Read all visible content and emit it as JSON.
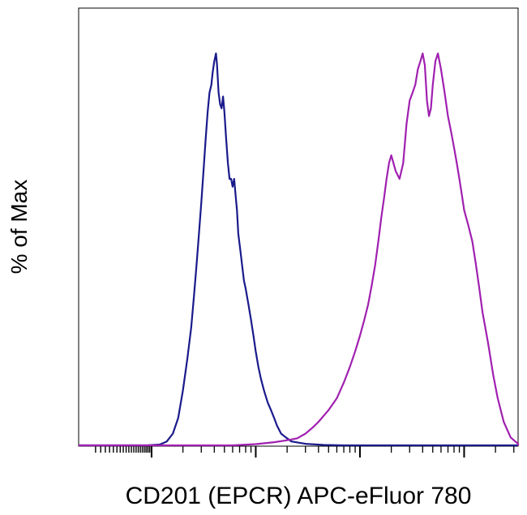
{
  "chart_data": {
    "type": "line",
    "title": "",
    "xlabel": "CD201 (EPCR) APC-eFluor 780",
    "ylabel": "% of Max",
    "x_scale": "log",
    "xlim": [
      1,
      100000
    ],
    "ylim": [
      0,
      100
    ],
    "x_major_ticks": [
      10,
      100,
      1000,
      10000
    ],
    "x_tick_labels_shown": false,
    "grid": false,
    "legend": "none",
    "series": [
      {
        "color": "#1a1a8c",
        "points": [
          [
            1,
            0
          ],
          [
            9,
            0
          ],
          [
            12,
            0.2
          ],
          [
            14,
            1
          ],
          [
            16,
            3
          ],
          [
            18,
            7
          ],
          [
            20,
            14
          ],
          [
            22,
            22
          ],
          [
            24,
            30
          ],
          [
            25.5,
            38
          ],
          [
            27,
            46
          ],
          [
            28.5,
            54
          ],
          [
            30,
            62
          ],
          [
            31.5,
            70
          ],
          [
            33,
            78
          ],
          [
            34.5,
            85
          ],
          [
            36,
            90
          ],
          [
            37.5,
            92
          ],
          [
            38.5,
            95
          ],
          [
            40,
            98
          ],
          [
            41.5,
            100
          ],
          [
            42.5,
            97
          ],
          [
            44,
            90
          ],
          [
            45.5,
            87
          ],
          [
            47,
            86
          ],
          [
            48.5,
            89
          ],
          [
            50,
            85
          ],
          [
            52,
            78
          ],
          [
            54,
            72
          ],
          [
            56,
            68
          ],
          [
            58,
            68
          ],
          [
            60,
            66
          ],
          [
            62,
            68
          ],
          [
            64,
            64
          ],
          [
            66,
            60
          ],
          [
            68,
            54
          ],
          [
            71,
            50
          ],
          [
            74,
            46
          ],
          [
            77,
            42
          ],
          [
            80,
            40
          ],
          [
            85,
            36
          ],
          [
            90,
            32
          ],
          [
            95,
            28
          ],
          [
            100,
            24
          ],
          [
            106,
            20
          ],
          [
            112,
            17
          ],
          [
            120,
            14
          ],
          [
            130,
            11
          ],
          [
            140,
            9
          ],
          [
            150,
            7
          ],
          [
            160,
            5
          ],
          [
            175,
            3
          ],
          [
            195,
            2
          ],
          [
            220,
            1
          ],
          [
            300,
            0.4
          ],
          [
            450,
            0.1
          ],
          [
            700,
            0
          ],
          [
            100000,
            0
          ]
        ]
      },
      {
        "color": "#a020b0",
        "points": [
          [
            1,
            0
          ],
          [
            60,
            0
          ],
          [
            100,
            0.3
          ],
          [
            150,
            0.8
          ],
          [
            200,
            1.3
          ],
          [
            250,
            1.8
          ],
          [
            300,
            3
          ],
          [
            350,
            4.5
          ],
          [
            400,
            6
          ],
          [
            500,
            9
          ],
          [
            600,
            12
          ],
          [
            700,
            16
          ],
          [
            800,
            20
          ],
          [
            900,
            24
          ],
          [
            1000,
            28
          ],
          [
            1100,
            32
          ],
          [
            1200,
            36
          ],
          [
            1300,
            41
          ],
          [
            1400,
            46
          ],
          [
            1500,
            52
          ],
          [
            1600,
            58
          ],
          [
            1700,
            63
          ],
          [
            1800,
            68
          ],
          [
            1900,
            72
          ],
          [
            2000,
            74
          ],
          [
            2200,
            70
          ],
          [
            2400,
            68
          ],
          [
            2600,
            72
          ],
          [
            2800,
            82
          ],
          [
            3000,
            88
          ],
          [
            3200,
            90
          ],
          [
            3400,
            92
          ],
          [
            3600,
            96
          ],
          [
            3800,
            98
          ],
          [
            4000,
            100
          ],
          [
            4200,
            97
          ],
          [
            4400,
            88
          ],
          [
            4600,
            84
          ],
          [
            4800,
            86
          ],
          [
            5000,
            92
          ],
          [
            5300,
            98
          ],
          [
            5600,
            100
          ],
          [
            6000,
            96
          ],
          [
            6500,
            90
          ],
          [
            7000,
            84
          ],
          [
            7500,
            80
          ],
          [
            8000,
            76
          ],
          [
            8500,
            72
          ],
          [
            9000,
            68
          ],
          [
            9500,
            64
          ],
          [
            10000,
            60
          ],
          [
            11000,
            56
          ],
          [
            12000,
            52
          ],
          [
            13000,
            46
          ],
          [
            14000,
            40
          ],
          [
            15000,
            34
          ],
          [
            17000,
            26
          ],
          [
            19000,
            18
          ],
          [
            21000,
            12
          ],
          [
            24000,
            6
          ],
          [
            28000,
            2
          ],
          [
            35000,
            0.4
          ],
          [
            50000,
            0
          ],
          [
            100000,
            0
          ]
        ]
      }
    ]
  }
}
